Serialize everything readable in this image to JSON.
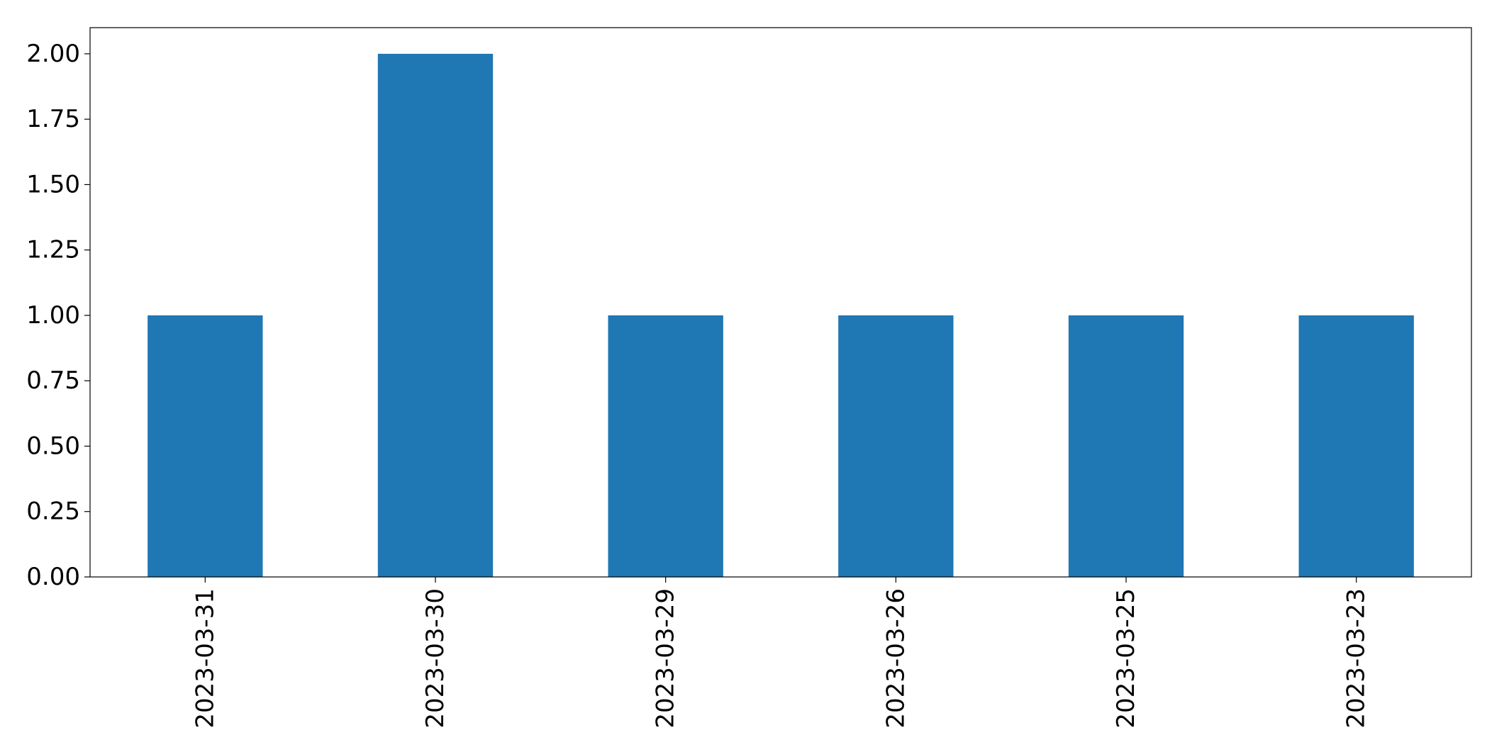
{
  "chart_data": {
    "type": "bar",
    "categories": [
      "2023-03-31",
      "2023-03-30",
      "2023-03-29",
      "2023-03-26",
      "2023-03-25",
      "2023-03-23"
    ],
    "values": [
      1,
      2,
      1,
      1,
      1,
      1
    ],
    "title": "",
    "xlabel": "",
    "ylabel": "",
    "ylim": [
      0,
      2.1
    ],
    "yticks": [
      "0.00",
      "0.25",
      "0.50",
      "0.75",
      "1.00",
      "1.25",
      "1.50",
      "1.75",
      "2.00"
    ],
    "grid": false,
    "bar_color": "#1f77b4",
    "x_tick_rotation": "vertical"
  }
}
